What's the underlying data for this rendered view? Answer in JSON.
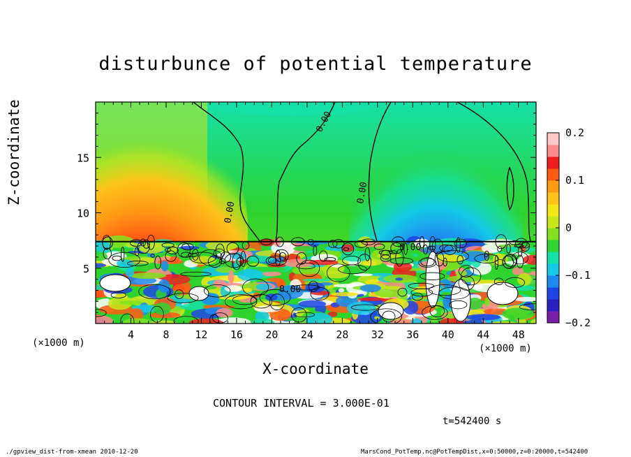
{
  "chart_data": {
    "type": "heatmap",
    "title": "disturbunce of potential temperature",
    "xlabel": "X-coordinate",
    "ylabel": "Z-coordinate",
    "x_unit_left": "(×1000 m)",
    "x_unit_right": "(×1000 m)",
    "xlim": [
      0,
      50
    ],
    "ylim": [
      0,
      20
    ],
    "x_ticks": [
      4,
      8,
      12,
      16,
      20,
      24,
      28,
      32,
      36,
      40,
      44,
      48
    ],
    "y_ticks": [
      5,
      10,
      15
    ],
    "colorbar": {
      "range": [
        -0.2,
        0.2
      ],
      "tick_values": [
        0.2,
        0.1,
        0,
        -0.1,
        -0.2
      ],
      "tick_labels": [
        "0.2",
        "0.1",
        "0",
        "−0.1",
        "−0.2"
      ]
    },
    "contour_labels": [
      "0.00",
      "0.00",
      "0.00",
      "0.00",
      "0.00"
    ],
    "contour_interval_text": "CONTOUR INTERVAL = 3.000E-01",
    "time_text": "t=542400 s"
  },
  "footer": {
    "left": "./gpview_dist-from-xmean  2010-12-20",
    "right": "MarsCond_PotTemp.nc@PotTempDist,x=0:50000,z=0:20000,t=542400"
  },
  "colors": {
    "palette": [
      "#7a1fa8",
      "#2a1fbf",
      "#1f44e6",
      "#1f88f0",
      "#15c8e8",
      "#15e0a8",
      "#2ed32e",
      "#82e01e",
      "#c8e61a",
      "#f5e61a",
      "#ffc21a",
      "#ff9a14",
      "#ff5a14",
      "#ee1f1f",
      "#ff8a8a",
      "#ffc8c8"
    ]
  }
}
